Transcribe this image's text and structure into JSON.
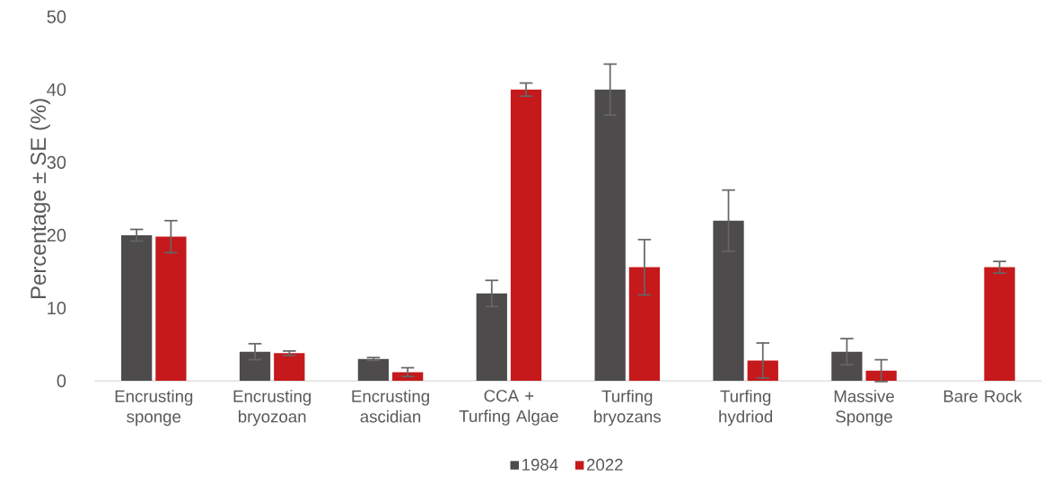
{
  "chart_data": {
    "type": "bar",
    "ylabel": "Percentage ± SE (%)",
    "categories": [
      "Encrusting sponge",
      "Encrusting bryozoan",
      "Encrusting ascidian",
      "CCA + Turfing Algae",
      "Turfing bryozans",
      "Turfing hydriod",
      "Massive Sponge",
      "Bare Rock"
    ],
    "series": [
      {
        "name": "1984",
        "color": "#4d4b4b",
        "values": [
          20,
          4,
          3,
          12,
          40,
          22,
          4,
          0
        ],
        "errors": [
          0.8,
          1.1,
          0.2,
          1.8,
          3.5,
          4.2,
          1.8,
          null
        ]
      },
      {
        "name": "2022",
        "color": "#c5191b",
        "values": [
          19.8,
          3.8,
          1.2,
          40,
          15.6,
          2.8,
          1.4,
          15.6
        ],
        "errors": [
          2.2,
          0.3,
          0.6,
          0.9,
          3.8,
          2.4,
          1.5,
          0.8
        ]
      }
    ],
    "ylim": [
      0,
      50
    ],
    "yticks": [
      0,
      10,
      20,
      30,
      40,
      50
    ],
    "grid": false,
    "legend": "bottom"
  }
}
